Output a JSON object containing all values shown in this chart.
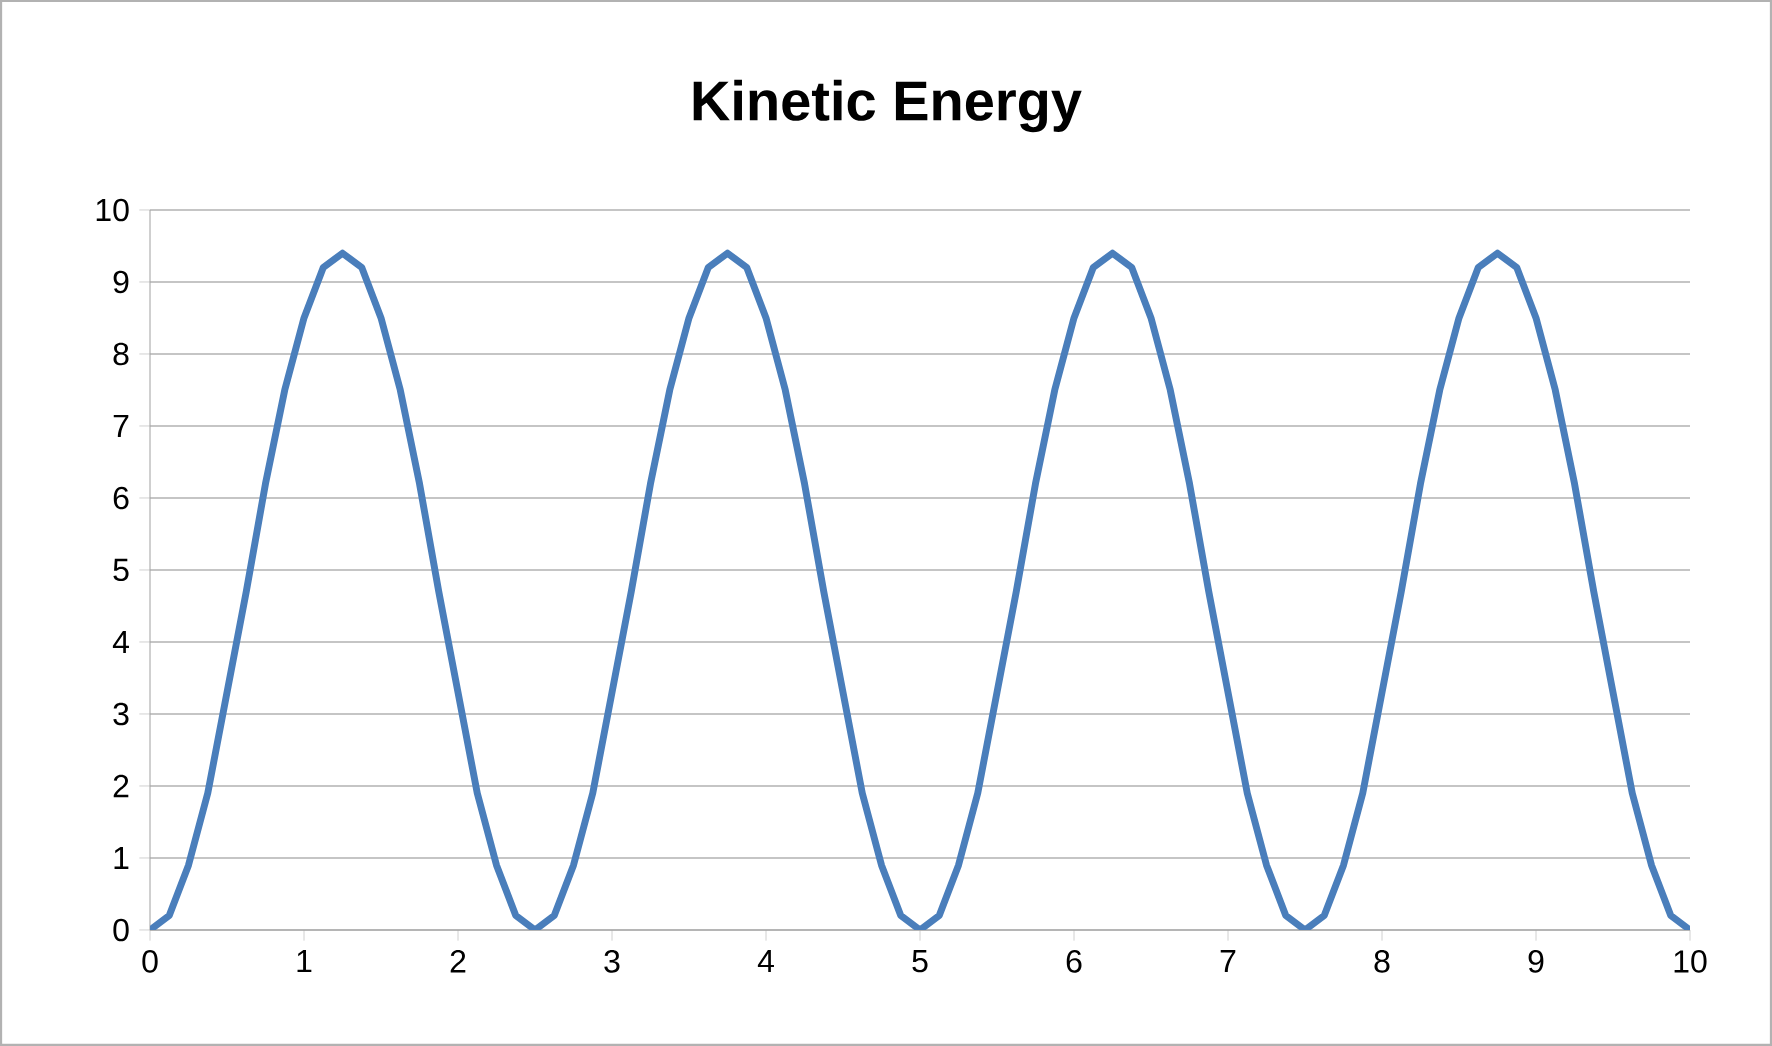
{
  "chart_data": {
    "type": "line",
    "title": "Kinetic Energy",
    "x": [
      0,
      0.125,
      0.25,
      0.375,
      0.5,
      0.625,
      0.75,
      0.875,
      1,
      1.125,
      1.25,
      1.375,
      1.5,
      1.625,
      1.75,
      1.875,
      2,
      2.125,
      2.25,
      2.375,
      2.5,
      2.625,
      2.75,
      2.875,
      3,
      3.125,
      3.25,
      3.375,
      3.5,
      3.625,
      3.75,
      3.875,
      4,
      4.125,
      4.25,
      4.375,
      4.5,
      4.625,
      4.75,
      4.875,
      5,
      5.125,
      5.25,
      5.375,
      5.5,
      5.625,
      5.75,
      5.875,
      6,
      6.125,
      6.25,
      6.375,
      6.5,
      6.625,
      6.75,
      6.875,
      7,
      7.125,
      7.25,
      7.375,
      7.5,
      7.625,
      7.75,
      7.875,
      8,
      8.125,
      8.25,
      8.375,
      8.5,
      8.625,
      8.75,
      8.875,
      9,
      9.125,
      9.25,
      9.375,
      9.5,
      9.625,
      9.75,
      9.875,
      10
    ],
    "values": [
      0,
      0.2,
      0.9,
      1.9,
      3.3,
      4.7,
      6.2,
      7.5,
      8.5,
      9.2,
      9.4,
      9.2,
      8.5,
      7.5,
      6.2,
      4.7,
      3.3,
      1.9,
      0.9,
      0.2,
      0,
      0.2,
      0.9,
      1.9,
      3.3,
      4.7,
      6.2,
      7.5,
      8.5,
      9.2,
      9.4,
      9.2,
      8.5,
      7.5,
      6.2,
      4.7,
      3.3,
      1.9,
      0.9,
      0.2,
      0,
      0.2,
      0.9,
      1.9,
      3.3,
      4.7,
      6.2,
      7.5,
      8.5,
      9.2,
      9.4,
      9.2,
      8.5,
      7.5,
      6.2,
      4.7,
      3.3,
      1.9,
      0.9,
      0.2,
      0,
      0.2,
      0.9,
      1.9,
      3.3,
      4.7,
      6.2,
      7.5,
      8.5,
      9.2,
      9.4,
      9.2,
      8.5,
      7.5,
      6.2,
      4.7,
      3.3,
      1.9,
      0.9,
      0.2,
      0
    ],
    "color": "#4a7ebb",
    "xlim": [
      0,
      10
    ],
    "xticks": [
      0,
      1,
      2,
      3,
      4,
      5,
      6,
      7,
      8,
      9,
      10
    ],
    "ylim": [
      0,
      10
    ],
    "yticks": [
      0,
      1,
      2,
      3,
      4,
      5,
      6,
      7,
      8,
      9,
      10
    ],
    "grid": "y"
  }
}
